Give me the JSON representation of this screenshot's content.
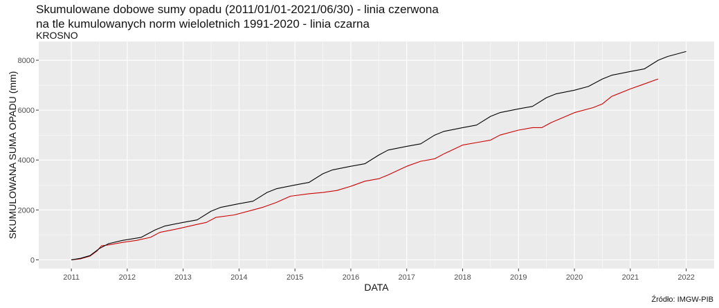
{
  "header": {
    "title_line1": "Skumulowane dobowe sumy opadu (2011/01/01-2021/06/30) - linia czerwona",
    "title_line2": "na tle kumulowanych norm wieloletnich 1991-2020 - linia czarna",
    "subtitle": "KROSNO"
  },
  "footer": {
    "source": "Źródło: IMGW-PIB"
  },
  "colors": {
    "panel": "#ebebeb",
    "grid_major": "#ffffff",
    "observed": "#cc0000",
    "norm": "#000000"
  },
  "chart_data": {
    "type": "line",
    "xlabel": "DATA",
    "ylabel": "SKUMULOWANA SUMA OPADU (mm)",
    "xlim": [
      "2010-06-01",
      "2022-07-01"
    ],
    "ylim": [
      -350,
      8750
    ],
    "x_ticks": [
      "2011",
      "2012",
      "2013",
      "2014",
      "2015",
      "2016",
      "2017",
      "2018",
      "2019",
      "2020",
      "2021",
      "2022"
    ],
    "y_ticks": [
      0,
      2000,
      4000,
      6000,
      8000
    ],
    "grid": true,
    "series": [
      {
        "key": "observed",
        "x": [
          "2011-01-01",
          "2011-03-01",
          "2011-05-01",
          "2011-06-15",
          "2011-07-15",
          "2011-09-01",
          "2011-12-01",
          "2012-03-01",
          "2012-06-01",
          "2012-08-01",
          "2012-12-01",
          "2013-04-01",
          "2013-06-01",
          "2013-08-01",
          "2013-12-01",
          "2014-04-01",
          "2014-06-01",
          "2014-09-01",
          "2014-12-01",
          "2015-04-01",
          "2015-07-01",
          "2015-10-01",
          "2016-01-01",
          "2016-04-01",
          "2016-07-01",
          "2016-09-01",
          "2017-01-01",
          "2017-04-01",
          "2017-07-01",
          "2017-09-01",
          "2018-01-01",
          "2018-04-01",
          "2018-07-01",
          "2018-09-01",
          "2019-01-01",
          "2019-04-01",
          "2019-06-01",
          "2019-08-01",
          "2020-01-01",
          "2020-05-01",
          "2020-07-01",
          "2020-09-01",
          "2021-01-01",
          "2021-04-01",
          "2021-06-30"
        ],
        "values": [
          0,
          40,
          150,
          350,
          560,
          600,
          700,
          780,
          900,
          1100,
          1250,
          1420,
          1500,
          1700,
          1800,
          2000,
          2100,
          2300,
          2550,
          2650,
          2700,
          2780,
          2950,
          3150,
          3250,
          3400,
          3750,
          3950,
          4050,
          4250,
          4600,
          4700,
          4800,
          5000,
          5200,
          5300,
          5300,
          5500,
          5900,
          6100,
          6250,
          6550,
          6850,
          7050,
          7250
        ]
      },
      {
        "key": "norm",
        "x": [
          "2011-01-01",
          "2011-03-01",
          "2011-05-01",
          "2011-07-01",
          "2011-09-01",
          "2011-12-01",
          "2012-04-01",
          "2012-07-01",
          "2012-09-01",
          "2013-01-01",
          "2013-04-01",
          "2013-07-01",
          "2013-09-01",
          "2014-01-01",
          "2014-04-01",
          "2014-07-01",
          "2014-09-01",
          "2015-01-01",
          "2015-04-01",
          "2015-07-01",
          "2015-09-01",
          "2016-01-01",
          "2016-04-01",
          "2016-07-01",
          "2016-09-01",
          "2017-01-01",
          "2017-04-01",
          "2017-07-01",
          "2017-09-01",
          "2018-01-01",
          "2018-04-01",
          "2018-07-01",
          "2018-09-01",
          "2019-01-01",
          "2019-04-01",
          "2019-07-01",
          "2019-09-01",
          "2020-01-01",
          "2020-04-01",
          "2020-07-01",
          "2020-09-01",
          "2021-01-01",
          "2021-04-01",
          "2021-07-01",
          "2021-09-01",
          "2022-01-01"
        ],
        "values": [
          0,
          60,
          170,
          450,
          650,
          780,
          900,
          1200,
          1350,
          1500,
          1600,
          1950,
          2100,
          2250,
          2350,
          2700,
          2850,
          3000,
          3100,
          3450,
          3600,
          3750,
          3850,
          4200,
          4400,
          4550,
          4650,
          5000,
          5150,
          5300,
          5400,
          5750,
          5900,
          6050,
          6150,
          6500,
          6650,
          6800,
          6950,
          7250,
          7400,
          7550,
          7650,
          8000,
          8150,
          8350
        ]
      }
    ]
  }
}
